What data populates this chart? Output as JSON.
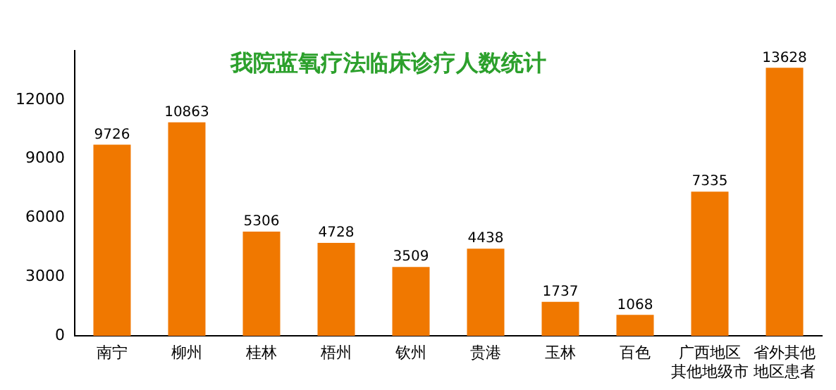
{
  "chart_data": {
    "type": "bar",
    "title": "我院蓝氧疗法临床诊疗人数统计",
    "categories": [
      "南宁",
      "柳州",
      "桂林",
      "梧州",
      "钦州",
      "贵港",
      "玉林",
      "百色",
      "广西地区其他地级市",
      "省外其他地区患者"
    ],
    "values": [
      9726,
      10863,
      5306,
      4728,
      3509,
      4438,
      1737,
      1068,
      7335,
      13628
    ],
    "color": "#f07800",
    "ylim": [
      0,
      14500
    ],
    "yticks": [
      0,
      3000,
      6000,
      9000,
      12000
    ],
    "grid": false,
    "legend": false,
    "data_labels": true
  }
}
